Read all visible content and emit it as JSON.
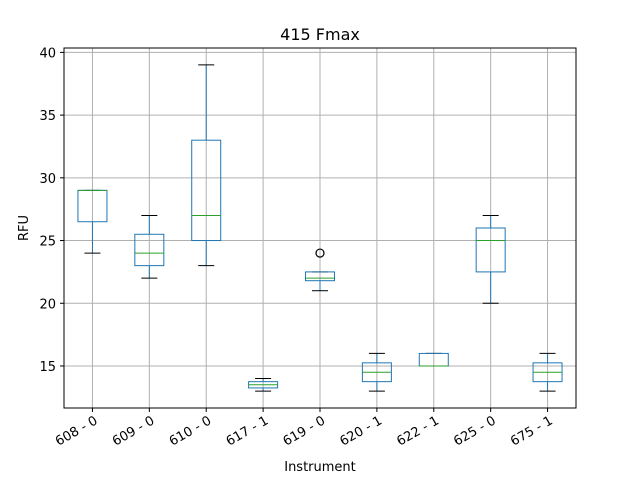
{
  "chart_data": {
    "type": "boxplot",
    "title": "415 Fmax",
    "xlabel": "Instrument",
    "ylabel": "RFU",
    "ylim": [
      11.65,
      40.35
    ],
    "yticks": [
      15,
      20,
      25,
      30,
      35,
      40
    ],
    "grid": true,
    "colors": {
      "box": "#1f77b4",
      "median": "#2ca02c",
      "grid": "#b0b0b0",
      "outlier": "#000000"
    },
    "categories": [
      "608 - 0",
      "609 - 0",
      "610 - 0",
      "617 - 1",
      "619 - 0",
      "620 - 1",
      "622 - 1",
      "625 - 0",
      "675 - 1"
    ],
    "boxes": [
      {
        "whisker_low": 24,
        "q1": 26.5,
        "median": 29,
        "q3": 29,
        "whisker_high": 29,
        "outliers": []
      },
      {
        "whisker_low": 22,
        "q1": 23,
        "median": 24,
        "q3": 25.5,
        "whisker_high": 27,
        "outliers": []
      },
      {
        "whisker_low": 23,
        "q1": 25,
        "median": 27,
        "q3": 33,
        "whisker_high": 39,
        "outliers": []
      },
      {
        "whisker_low": 13,
        "q1": 13.25,
        "median": 13.5,
        "q3": 13.75,
        "whisker_high": 14,
        "outliers": []
      },
      {
        "whisker_low": 21,
        "q1": 21.8,
        "median": 22,
        "q3": 22.5,
        "whisker_high": 22.5,
        "outliers": [
          24
        ]
      },
      {
        "whisker_low": 13,
        "q1": 13.75,
        "median": 14.5,
        "q3": 15.25,
        "whisker_high": 16,
        "outliers": []
      },
      {
        "whisker_low": 15,
        "q1": 15,
        "median": 15,
        "q3": 16,
        "whisker_high": 16,
        "outliers": []
      },
      {
        "whisker_low": 20,
        "q1": 22.5,
        "median": 25,
        "q3": 26,
        "whisker_high": 27,
        "outliers": []
      },
      {
        "whisker_low": 13,
        "q1": 13.75,
        "median": 14.5,
        "q3": 15.25,
        "whisker_high": 16,
        "outliers": []
      }
    ]
  }
}
